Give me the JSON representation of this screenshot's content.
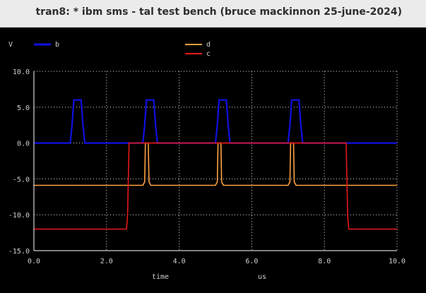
{
  "window": {
    "title": "tran8: * ibm sms - tal test bench (bruce mackinnon 25-june-2024)"
  },
  "colors": {
    "b": "#1010e0",
    "d": "#ffa040",
    "c": "#e81818",
    "grid": "#d8d8d8",
    "axis": "#ffffff",
    "text": "#d0d0d0"
  },
  "chart_data": {
    "type": "line",
    "ylabel": "V",
    "xlabel_left": "time",
    "xlabel_right": "us",
    "xlim": [
      0,
      10
    ],
    "ylim": [
      -15,
      10
    ],
    "x_ticks": [
      "0.0",
      "2.0",
      "4.0",
      "6.0",
      "8.0",
      "10.0"
    ],
    "y_ticks": [
      "10.0",
      "5.0",
      "0.0",
      "-5.0",
      "-10.0",
      "-15.0"
    ],
    "x_tick_values": [
      0,
      2,
      4,
      6,
      8,
      10
    ],
    "y_tick_values": [
      10,
      5,
      0,
      -5,
      -10,
      -15
    ],
    "grid": true,
    "series": [
      {
        "name": "b",
        "color": "#1010e0",
        "points": [
          [
            0,
            0
          ],
          [
            1.0,
            0
          ],
          [
            1.05,
            2.5
          ],
          [
            1.1,
            6
          ],
          [
            1.3,
            6
          ],
          [
            1.35,
            2.5
          ],
          [
            1.4,
            0
          ],
          [
            3.0,
            0
          ],
          [
            3.05,
            2.5
          ],
          [
            3.1,
            6
          ],
          [
            3.3,
            6
          ],
          [
            3.35,
            2.5
          ],
          [
            3.4,
            0
          ],
          [
            5.0,
            0
          ],
          [
            5.05,
            2.5
          ],
          [
            5.1,
            6
          ],
          [
            5.3,
            6
          ],
          [
            5.35,
            2.5
          ],
          [
            5.4,
            0
          ],
          [
            7.0,
            0
          ],
          [
            7.05,
            2.5
          ],
          [
            7.1,
            6
          ],
          [
            7.3,
            6
          ],
          [
            7.35,
            2.5
          ],
          [
            7.4,
            0
          ],
          [
            10,
            0
          ]
        ]
      },
      {
        "name": "d",
        "color": "#ffa040",
        "points": [
          [
            0,
            -5.9
          ],
          [
            3.0,
            -5.9
          ],
          [
            3.05,
            -5.4
          ],
          [
            3.07,
            0
          ],
          [
            3.15,
            0
          ],
          [
            3.17,
            -5.4
          ],
          [
            3.22,
            -5.9
          ],
          [
            5.0,
            -5.9
          ],
          [
            5.05,
            -5.4
          ],
          [
            5.07,
            0
          ],
          [
            5.15,
            0
          ],
          [
            5.17,
            -5.4
          ],
          [
            5.22,
            -5.9
          ],
          [
            7.0,
            -5.9
          ],
          [
            7.05,
            -5.4
          ],
          [
            7.07,
            0
          ],
          [
            7.15,
            0
          ],
          [
            7.17,
            -5.4
          ],
          [
            7.22,
            -5.9
          ],
          [
            10,
            -5.9
          ]
        ]
      },
      {
        "name": "c",
        "color": "#e81818",
        "points": [
          [
            0,
            -12
          ],
          [
            2.55,
            -12
          ],
          [
            2.58,
            -10
          ],
          [
            2.62,
            0
          ],
          [
            8.6,
            0
          ],
          [
            8.64,
            -10
          ],
          [
            8.67,
            -12
          ],
          [
            10,
            -12
          ]
        ]
      }
    ],
    "legend": [
      "b",
      "d",
      "c"
    ]
  }
}
